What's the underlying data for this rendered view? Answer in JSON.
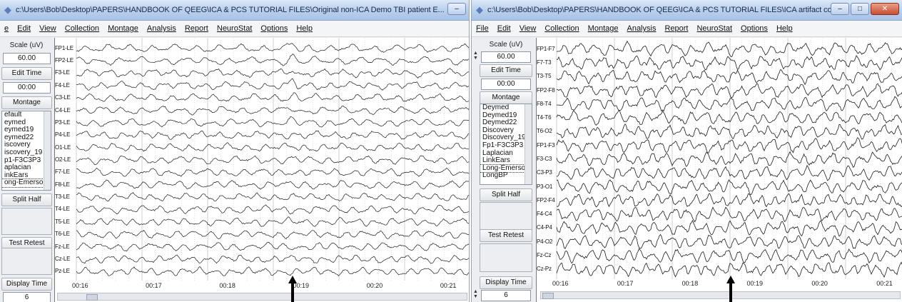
{
  "left_window": {
    "title": "c:\\Users\\Bob\\Desktop\\PAPERS\\HANDBOOK OF QEEG\\ICA & PCS TUTORIAL FILES\\Original non-ICA Demo TBI patient E...",
    "menu": [
      "e",
      "Edit",
      "View",
      "Collection",
      "Montage",
      "Analysis",
      "Report",
      "NeuroStat",
      "Options",
      "Help"
    ],
    "scale_label": "Scale (uV)",
    "scale_value": "60.00",
    "edit_time_label": "Edit Time",
    "edit_time_value": "00:00",
    "montage_label": "Montage",
    "montage_options": [
      "efault",
      "eymed",
      "eymed19",
      "eymed22",
      "iscovery",
      "iscovery_19",
      "p1-F3C3P3",
      "aplacian",
      "inkEars",
      "ong-Emersor"
    ],
    "montage_selected": 9,
    "split_half_label": "Split Half",
    "test_retest_label": "Test Retest",
    "display_time_label": "Display Time",
    "display_time_value": "6",
    "channels": [
      "FP1-LE",
      "FP2-LE",
      "F3-LE",
      "F4-LE",
      "C3-LE",
      "C4-LE",
      "P3-LE",
      "P4-LE",
      "O1-LE",
      "O2-LE",
      "F7-LE",
      "F8-LE",
      "T3-LE",
      "T4-LE",
      "T5-LE",
      "T6-LE",
      "Fz-LE",
      "Cz-LE",
      "Pz-LE"
    ],
    "time_ticks": [
      "00:16",
      "00:17",
      "00:18",
      "00:19",
      "00:20",
      "00:21"
    ]
  },
  "right_window": {
    "title": "c:\\Users\\Bob\\Desktop\\PAPERS\\HANDBOOK OF QEEG\\ICA & PCS TUTORIAL FILES\\ICA artifact corr...",
    "menu": [
      "File",
      "Edit",
      "View",
      "Collection",
      "Montage",
      "Analysis",
      "Report",
      "NeuroStat",
      "Options",
      "Help"
    ],
    "scale_label": "Scale (uV)",
    "scale_value": "60.00",
    "edit_time_label": "Edit Time",
    "edit_time_value": "00:00",
    "montage_label": "Montage",
    "montage_options": [
      "Deymed",
      "Deymed19",
      "Deymed22",
      "Discovery",
      "Discovery_19",
      "Fp1-F3C3P3",
      "Laplacian",
      "LinkEars",
      "Long-Emersor",
      "LongBP"
    ],
    "montage_selected": 8,
    "split_half_label": "Split Half",
    "test_retest_label": "Test Retest",
    "display_time_label": "Display Time",
    "display_time_value": "6",
    "channels": [
      "FP1-F7",
      "F7-T3",
      "T3-T5",
      "FP2-F8",
      "F8-T4",
      "T4-T6",
      "T6-O2",
      "FP1-F3",
      "F3-C3",
      "C3-P3",
      "P3-O1",
      "FP2-F4",
      "F4-C4",
      "C4-P4",
      "P4-O2",
      "Fz-Cz",
      "Cz-Pz"
    ],
    "time_ticks": [
      "00:16",
      "00:17",
      "00:18",
      "00:19",
      "00:20",
      "00:21"
    ]
  },
  "colors": {
    "trace": "#1a1a1a",
    "grid": "#c8ccd2",
    "arrow": "#000000",
    "titlebar": "#bcd2ee"
  }
}
